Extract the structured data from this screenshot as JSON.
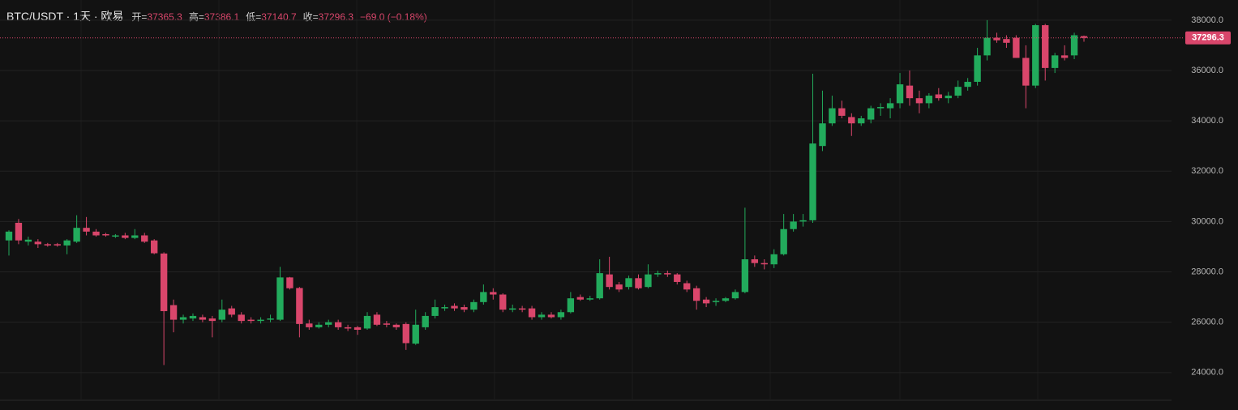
{
  "chart_data": {
    "type": "candlestick",
    "title": "BTC/USDT · 1天 · 欧易",
    "ohlc_header": [
      {
        "label": "开=",
        "value": "37365.3"
      },
      {
        "label": "高=",
        "value": "37386.1"
      },
      {
        "label": "低=",
        "value": "37140.7"
      },
      {
        "label": "收=",
        "value": "37296.3"
      }
    ],
    "change_text": "−69.0 (−0.18%)",
    "up_color": "#22ab5c",
    "down_color": "#d9466b",
    "open": [
      29250,
      29950,
      29200,
      29200,
      29100,
      29100,
      29050,
      29200,
      29750,
      29600,
      29500,
      29400,
      29450,
      29350,
      29450,
      29250,
      28730,
      26680,
      26100,
      26150,
      26200,
      26150,
      26100,
      26550,
      26300,
      26100,
      26050,
      26100,
      26100,
      27780,
      27360,
      25950,
      25800,
      25900,
      26000,
      25800,
      25800,
      25750,
      26300,
      25950,
      25900,
      25930,
      25150,
      25800,
      26250,
      26550,
      26650,
      26600,
      26500,
      26800,
      27200,
      27100,
      26500,
      26550,
      26550,
      26200,
      26300,
      26200,
      26400,
      27000,
      26900,
      26950,
      27900,
      27500,
      27400,
      27750,
      27400,
      27900,
      27950,
      27900,
      27550,
      27350,
      26900,
      26800,
      26850,
      26950,
      27200,
      28500,
      28350,
      28300,
      28700,
      29700,
      30000,
      30050,
      33000,
      33900,
      34500,
      34150,
      33900,
      34050,
      34500,
      34500,
      34700,
      35400,
      34900,
      34700,
      35050,
      34900,
      35000,
      35350,
      35550,
      36600,
      37300,
      37250,
      37300,
      36500,
      35400,
      37800,
      36100,
      36600,
      36600,
      37365.3
    ],
    "high": [
      29650,
      30100,
      29400,
      29300,
      29150,
      29150,
      29300,
      30250,
      30180,
      29700,
      29550,
      29500,
      29550,
      29700,
      29550,
      29300,
      28780,
      26900,
      26300,
      26350,
      26300,
      26250,
      26900,
      26650,
      26400,
      26200,
      26200,
      26300,
      28200,
      27800,
      27400,
      26100,
      26000,
      26100,
      26100,
      25900,
      25850,
      26400,
      26400,
      26050,
      25950,
      26000,
      26500,
      26400,
      26900,
      26700,
      26750,
      26700,
      26900,
      27500,
      27350,
      27150,
      26700,
      26650,
      26650,
      26400,
      26400,
      26500,
      27200,
      27100,
      27050,
      28500,
      28600,
      27600,
      27850,
      27900,
      28300,
      28050,
      28050,
      27950,
      27650,
      27450,
      27000,
      26950,
      27000,
      27300,
      30550,
      28650,
      28500,
      28900,
      30300,
      30300,
      30300,
      35870,
      35200,
      35000,
      34800,
      34300,
      34200,
      34600,
      34700,
      34900,
      35900,
      36000,
      35200,
      35100,
      35300,
      35150,
      35600,
      35700,
      36900,
      38000,
      37500,
      37400,
      37400,
      37000,
      37850,
      37850,
      36700,
      37000,
      37500,
      37386.1
    ],
    "low": [
      28650,
      29100,
      29050,
      28950,
      29000,
      29000,
      28700,
      29150,
      29450,
      29400,
      29400,
      29350,
      29300,
      29300,
      29150,
      28700,
      24300,
      25600,
      25950,
      26050,
      26000,
      25400,
      26000,
      26200,
      25950,
      25950,
      25950,
      26000,
      26050,
      27300,
      25400,
      25700,
      25750,
      25800,
      25700,
      25650,
      25500,
      25700,
      25850,
      25800,
      25700,
      24900,
      25100,
      25700,
      26150,
      26450,
      26450,
      26400,
      26400,
      26700,
      26900,
      26400,
      26400,
      26400,
      26100,
      26100,
      26150,
      26100,
      26350,
      26850,
      26850,
      26900,
      27300,
      27200,
      27300,
      27300,
      27350,
      27800,
      27800,
      27500,
      27200,
      26500,
      26600,
      26650,
      26800,
      26900,
      27150,
      28200,
      28100,
      28150,
      28650,
      29600,
      29800,
      29950,
      32800,
      33800,
      34100,
      33400,
      33800,
      33900,
      34200,
      34100,
      34500,
      34600,
      34300,
      34500,
      34800,
      34700,
      34900,
      35200,
      35400,
      36400,
      37100,
      36900,
      36500,
      34500,
      35300,
      35600,
      35900,
      36400,
      36450,
      37140.7
    ],
    "close": [
      29600,
      29250,
      29280,
      29100,
      29050,
      29050,
      29250,
      29750,
      29600,
      29450,
      29450,
      29450,
      29350,
      29450,
      29200,
      28740,
      26440,
      26100,
      26200,
      26250,
      26100,
      26050,
      26500,
      26300,
      26050,
      26050,
      26100,
      26150,
      27780,
      27350,
      25930,
      25800,
      25900,
      26000,
      25800,
      25750,
      25700,
      26250,
      25900,
      25900,
      25800,
      25170,
      25900,
      26250,
      26600,
      26600,
      26550,
      26500,
      26800,
      27200,
      27100,
      26500,
      26550,
      26500,
      26200,
      26300,
      26200,
      26400,
      26950,
      26900,
      26950,
      27950,
      27400,
      27300,
      27750,
      27350,
      27900,
      27950,
      27900,
      27600,
      27300,
      26850,
      26750,
      26850,
      26950,
      27200,
      28500,
      28350,
      28300,
      28700,
      29700,
      30000,
      30050,
      33100,
      33900,
      34500,
      34200,
      33900,
      34100,
      34500,
      34550,
      34700,
      35450,
      34900,
      34700,
      35000,
      34900,
      35000,
      35350,
      35550,
      36600,
      37300,
      37200,
      37100,
      36500,
      35400,
      37800,
      36100,
      36600,
      36500,
      37400,
      37296.3
    ],
    "ylim": [
      22900,
      38800
    ],
    "yticks": [
      {
        "value": 24000,
        "label": "24000.0"
      },
      {
        "value": 26000,
        "label": "26000.0"
      },
      {
        "value": 28000,
        "label": "28000.0"
      },
      {
        "value": 30000,
        "label": "30000.0"
      },
      {
        "value": 32000,
        "label": "32000.0"
      },
      {
        "value": 34000,
        "label": "34000.0"
      },
      {
        "value": 36000,
        "label": "36000.0"
      },
      {
        "value": 38000,
        "label": "38000.0"
      }
    ],
    "grid": true
  }
}
